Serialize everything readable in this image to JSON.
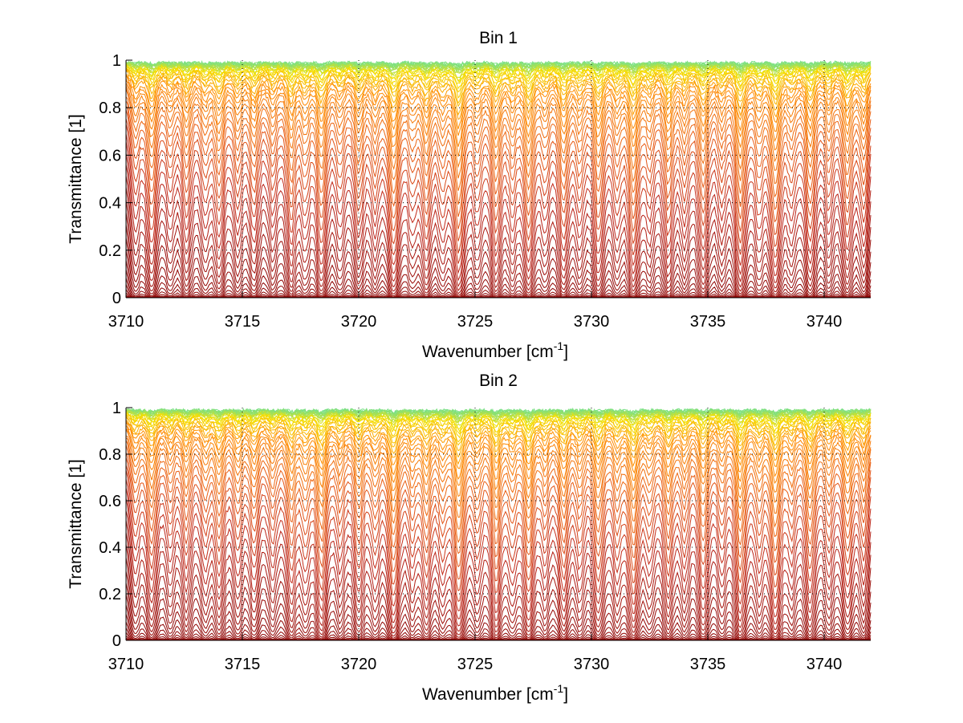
{
  "chart_data": [
    {
      "type": "line",
      "title": "Bin 1",
      "xlabel": "Wavenumber [cm^-1]",
      "xlabel_base": "Wavenumber [cm",
      "xlabel_sup": "-1",
      "xlabel_close": "]",
      "ylabel": "Transmittance [1]",
      "xlim": [
        3710,
        3742
      ],
      "ylim": [
        0,
        1
      ],
      "xticks": [
        3710,
        3715,
        3720,
        3725,
        3730,
        3735,
        3740
      ],
      "xtick_labels": [
        "3710",
        "3715",
        "3720",
        "3725",
        "3730",
        "3735",
        "3740"
      ],
      "yticks": [
        0,
        0.2,
        0.4,
        0.6,
        0.8,
        1
      ],
      "ytick_labels": [
        "0",
        "0.2",
        "0.4",
        "0.6",
        "0.8",
        "1"
      ],
      "grid": true,
      "grid_style": "dotted",
      "legend": "none",
      "series_count": 60,
      "series_description": "Family of transmittance spectra for increasing path optical depth; colormap from green/cyan (T≈1) through yellow and orange to dark red (T≈0)",
      "absorption_lines": {
        "centers": [
          3710.4,
          3711.1,
          3711.9,
          3712.6,
          3713.4,
          3714.0,
          3714.8,
          3715.5,
          3716.3,
          3717.1,
          3717.7,
          3718.4,
          3719.2,
          3720.0,
          3720.7,
          3721.5,
          3722.3,
          3722.9,
          3723.6,
          3724.3,
          3725.1,
          3725.9,
          3726.6,
          3727.3,
          3728.0,
          3728.8,
          3729.5,
          3730.3,
          3731.1,
          3731.8,
          3732.5,
          3733.3,
          3734.0,
          3734.8,
          3735.6,
          3736.4,
          3737.2,
          3737.9,
          3738.6,
          3739.4,
          3740.2,
          3741.0,
          3741.7
        ],
        "strengths": [
          0.8,
          1.4,
          0.7,
          1.1,
          0.8,
          1.2,
          0.9,
          1.1,
          0.8,
          1.3,
          0.9,
          1.6,
          0.8,
          1.2,
          0.9,
          2.0,
          0.8,
          1.4,
          0.9,
          2.2,
          0.9,
          1.6,
          0.9,
          1.8,
          0.8,
          1.5,
          0.9,
          1.6,
          0.9,
          1.9,
          0.8,
          1.4,
          0.9,
          1.5,
          0.8,
          1.9,
          0.9,
          2.0,
          0.8,
          1.6,
          0.9,
          1.5,
          1.2
        ]
      }
    },
    {
      "type": "line",
      "title": "Bin 2",
      "xlabel": "Wavenumber [cm^-1]",
      "xlabel_base": "Wavenumber [cm",
      "xlabel_sup": "-1",
      "xlabel_close": "]",
      "ylabel": "Transmittance [1]",
      "xlim": [
        3710,
        3742
      ],
      "ylim": [
        0,
        1
      ],
      "xticks": [
        3710,
        3715,
        3720,
        3725,
        3730,
        3735,
        3740
      ],
      "xtick_labels": [
        "3710",
        "3715",
        "3720",
        "3725",
        "3730",
        "3735",
        "3740"
      ],
      "yticks": [
        0,
        0.2,
        0.4,
        0.6,
        0.8,
        1
      ],
      "ytick_labels": [
        "0",
        "0.2",
        "0.4",
        "0.6",
        "0.8",
        "1"
      ],
      "grid": true,
      "grid_style": "dotted",
      "legend": "none",
      "series_count": 60,
      "series_description": "Family of transmittance spectra for increasing path optical depth; colormap from green/cyan (T≈1) through yellow and orange to dark red (T≈0)",
      "absorption_lines": {
        "centers": [
          3710.4,
          3711.1,
          3711.9,
          3712.6,
          3713.4,
          3714.0,
          3714.8,
          3715.5,
          3716.3,
          3717.1,
          3717.7,
          3718.4,
          3719.2,
          3720.0,
          3720.7,
          3721.5,
          3722.3,
          3722.9,
          3723.6,
          3724.3,
          3725.1,
          3725.9,
          3726.6,
          3727.3,
          3728.0,
          3728.8,
          3729.5,
          3730.3,
          3731.1,
          3731.8,
          3732.5,
          3733.3,
          3734.0,
          3734.8,
          3735.6,
          3736.4,
          3737.2,
          3737.9,
          3738.6,
          3739.4,
          3740.2,
          3741.0,
          3741.7
        ],
        "strengths": [
          0.8,
          1.3,
          0.7,
          1.0,
          0.8,
          1.1,
          0.9,
          1.0,
          0.8,
          1.2,
          0.9,
          1.7,
          0.8,
          1.2,
          0.9,
          1.9,
          0.8,
          1.3,
          0.9,
          2.1,
          0.9,
          1.7,
          0.9,
          1.7,
          0.8,
          1.4,
          0.9,
          1.5,
          0.9,
          1.8,
          0.8,
          1.3,
          0.9,
          1.4,
          0.8,
          1.8,
          0.9,
          1.9,
          0.8,
          1.5,
          0.9,
          1.4,
          1.1
        ]
      }
    }
  ],
  "colors": {
    "curve_low": "#8b0000",
    "curve_mid_low": "#c0281a",
    "curve_mid": "#e85a14",
    "curve_orange": "#ff8c00",
    "curve_yellow": "#f5e000",
    "curve_top": "#40e0c0",
    "axis": "#000000",
    "grid": "#000000"
  }
}
